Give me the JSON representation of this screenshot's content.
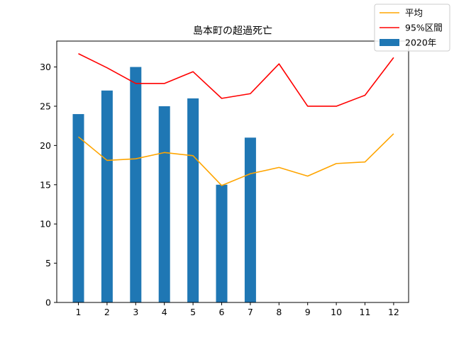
{
  "chart_data": {
    "type": "bar",
    "title": "島本町の超過死亡",
    "xlabel": "",
    "ylabel": "",
    "categories": [
      "1",
      "2",
      "3",
      "4",
      "5",
      "6",
      "7",
      "8",
      "9",
      "10",
      "11",
      "12"
    ],
    "ylim": [
      0,
      33.3
    ],
    "yticks": [
      0,
      5,
      10,
      15,
      20,
      25,
      30
    ],
    "grid": false,
    "legend_position": "top-right",
    "series": [
      {
        "name": "平均",
        "kind": "line",
        "color": "#ffa500",
        "values": [
          21.1,
          18.1,
          18.3,
          19.1,
          18.7,
          14.9,
          16.4,
          17.2,
          16.1,
          17.7,
          17.9,
          21.5
        ]
      },
      {
        "name": "95%区間",
        "kind": "line",
        "color": "#ff0000",
        "values": [
          31.7,
          29.9,
          27.9,
          27.9,
          29.4,
          26.0,
          26.6,
          30.4,
          25.0,
          25.0,
          26.4,
          31.2
        ]
      },
      {
        "name": "2020年",
        "kind": "bar",
        "color": "#1f77b4",
        "values": [
          24,
          27,
          30,
          25,
          26,
          15,
          21,
          null,
          null,
          null,
          null,
          null
        ]
      }
    ]
  }
}
